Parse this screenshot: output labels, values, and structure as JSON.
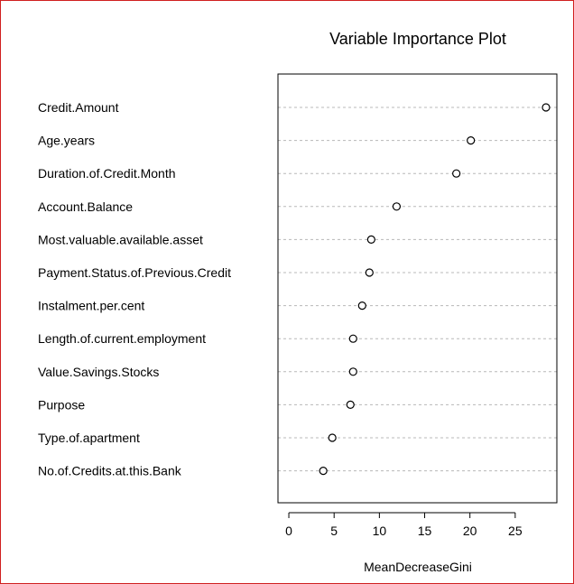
{
  "chart_data": {
    "type": "scatter",
    "title": "Variable Importance Plot",
    "xlabel": "MeanDecreaseGini",
    "ylabel": "",
    "xlim": [
      -1.2,
      29.6
    ],
    "xticks": [
      0,
      5,
      10,
      15,
      20,
      25
    ],
    "grid": true,
    "categories": [
      "Credit.Amount",
      "Age.years",
      "Duration.of.Credit.Month",
      "Account.Balance",
      "Most.valuable.available.asset",
      "Payment.Status.of.Previous.Credit",
      "Instalment.per.cent",
      "Length.of.current.employment",
      "Value.Savings.Stocks",
      "Purpose",
      "Type.of.apartment",
      "No.of.Credits.at.this.Bank"
    ],
    "values": [
      28.4,
      20.1,
      18.5,
      11.9,
      9.1,
      8.9,
      8.1,
      7.1,
      7.1,
      6.8,
      4.8,
      3.8
    ]
  }
}
